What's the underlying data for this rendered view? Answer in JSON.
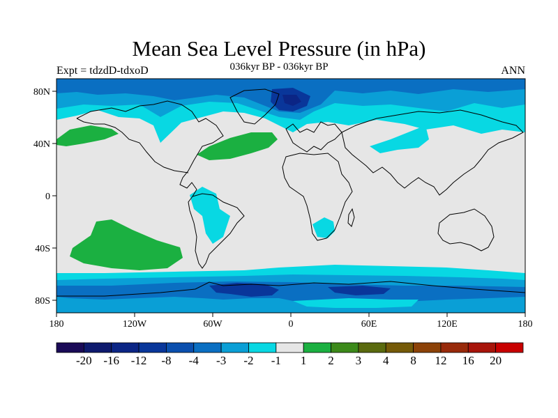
{
  "title": "Mean Sea Level Pressure (in hPa)",
  "subtitle": "036kyr BP - 036kyr BP",
  "left_label": "Expt = tdzdD-tdxoD",
  "right_label": "ANN",
  "lat_ticks": [
    "80N",
    "40N",
    "0",
    "40S",
    "80S"
  ],
  "lon_ticks": [
    "180",
    "120W",
    "60W",
    "0",
    "60E",
    "120E",
    "180"
  ],
  "colorbar": {
    "colors": [
      "#1a0a57",
      "#0e1a6e",
      "#0b2585",
      "#09369a",
      "#0a4fae",
      "#0a6fc2",
      "#0a9fd6",
      "#08d8e3",
      "#e6e6e6",
      "#1bb041",
      "#3c8a1a",
      "#5a6a0e",
      "#755a08",
      "#8c4208",
      "#982a0a",
      "#a8140a",
      "#c80000"
    ],
    "labels": [
      "-20",
      "-16",
      "-12",
      "-8",
      "-4",
      "-3",
      "-2",
      "-1",
      "1",
      "2",
      "3",
      "4",
      "8",
      "12",
      "16",
      "20"
    ]
  },
  "colors": {
    "land_outline": "#000000",
    "neutral": "#e6e6e6",
    "cyan": "#08d8e3",
    "blue_light": "#0a9fd6",
    "blue_mid": "#0a6fc2",
    "blue_dark": "#09369a",
    "green": "#1bb041"
  }
}
